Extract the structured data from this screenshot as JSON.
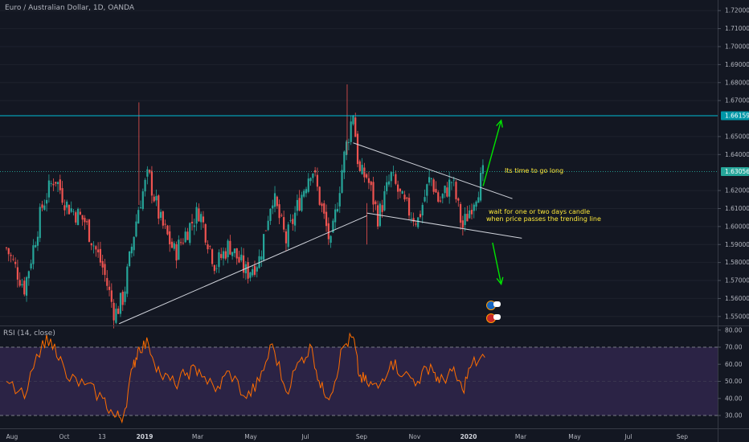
{
  "legend": {
    "symbol_title": "Euro / Australian Dollar, 1D, OANDA"
  },
  "annotations": {
    "go_long": "Its time to go long",
    "wait_line1": "wait for one or two days candle",
    "wait_line2": "when price passes the trending line"
  },
  "rsi": {
    "legend": "RSI (14, close)"
  },
  "price_scale": {
    "ticks": [
      "1.72000",
      "1.71000",
      "1.70000",
      "1.69000",
      "1.68000",
      "1.67000",
      "1.65000",
      "1.64000",
      "1.62000",
      "1.61000",
      "1.60000",
      "1.59000",
      "1.58000",
      "1.57000",
      "1.56000",
      "1.55000"
    ],
    "resistance_label": "1.66159",
    "current_label": "1.63056"
  },
  "rsi_scale": {
    "ticks": [
      "80.00",
      "70.00",
      "60.00",
      "50.00",
      "40.00",
      "30.00"
    ]
  },
  "time_axis": {
    "labels": [
      "Aug",
      "Oct",
      "13",
      "2019",
      "Mar",
      "May",
      "Jul",
      "Sep",
      "Nov",
      "2020",
      "Mar",
      "May",
      "Jul",
      "Sep"
    ]
  },
  "colors": {
    "background": "#131722",
    "up_candle": "#26a69a",
    "down_candle": "#ef5350",
    "resistance_line": "#00bcd4",
    "current_line": "#26a69a",
    "current_label_bg": "#26a69a",
    "arrow": "#00e400",
    "annotation_text": "#ffeb3b",
    "rsi_line": "#ff6d00",
    "rsi_band": "#2b2345",
    "trend_lines": "#d1d4dc"
  },
  "chart_data": {
    "type": "candlestick",
    "title": "Euro / Australian Dollar, 1D, OANDA",
    "symbol": "EURAUD",
    "timeframe": "1D",
    "ylim": [
      1.545,
      1.725
    ],
    "resistance_level": 1.66159,
    "last_price": 1.63056,
    "price_path": {
      "dates": [
        "2018-07-20",
        "2018-08-10",
        "2018-08-31",
        "2018-09-14",
        "2018-09-28",
        "2018-10-19",
        "2018-11-09",
        "2018-11-23",
        "2018-12-03",
        "2018-12-14",
        "2018-12-21",
        "2019-01-01",
        "2019-01-15",
        "2019-02-01",
        "2019-02-15",
        "2019-03-01",
        "2019-03-20",
        "2019-04-05",
        "2019-04-25",
        "2019-05-10",
        "2019-05-25",
        "2019-06-10",
        "2019-06-26",
        "2019-07-10",
        "2019-07-20",
        "2019-08-01",
        "2019-08-15",
        "2019-08-27",
        "2019-09-03",
        "2019-09-12",
        "2019-09-25",
        "2019-10-10",
        "2019-10-25",
        "2019-11-10",
        "2019-11-25",
        "2019-12-05",
        "2019-12-20",
        "2020-01-01",
        "2020-01-12",
        "2020-01-27"
      ],
      "close": [
        1.588,
        1.566,
        1.612,
        1.628,
        1.612,
        1.603,
        1.577,
        1.551,
        1.561,
        1.593,
        1.612,
        1.629,
        1.603,
        1.585,
        1.598,
        1.609,
        1.578,
        1.59,
        1.574,
        1.582,
        1.618,
        1.592,
        1.615,
        1.634,
        1.613,
        1.589,
        1.635,
        1.664,
        1.629,
        1.628,
        1.605,
        1.628,
        1.612,
        1.603,
        1.628,
        1.613,
        1.626,
        1.599,
        1.613,
        1.631
      ]
    },
    "trend_lines": [
      {
        "name": "rising support",
        "from": [
          "2018-11-28",
          1.546
        ],
        "to": [
          "2019-09-12",
          1.606
        ]
      },
      {
        "name": "descending resistance",
        "from": [
          "2019-08-27",
          1.6465
        ],
        "to": [
          "2020-02-28",
          1.6155
        ]
      },
      {
        "name": "lower channel",
        "from": [
          "2019-09-12",
          1.6075
        ],
        "to": [
          "2020-03-10",
          1.5935
        ]
      }
    ],
    "projections": [
      {
        "direction": "up",
        "from": [
          "2020-01-25",
          1.6225
        ],
        "to": [
          "2020-02-15",
          1.659
        ]
      },
      {
        "direction": "down",
        "from": [
          "2020-02-05",
          1.591
        ],
        "to": [
          "2020-02-15",
          1.568
        ]
      }
    ],
    "rsi": {
      "name": "RSI (14, close)",
      "ylim": [
        20,
        80
      ],
      "overbought": 70,
      "oversold": 30,
      "dates": [
        "2018-07-20",
        "2018-08-10",
        "2018-08-31",
        "2018-09-14",
        "2018-09-28",
        "2018-10-19",
        "2018-11-09",
        "2018-11-23",
        "2018-12-03",
        "2018-12-14",
        "2018-12-21",
        "2019-01-01",
        "2019-01-15",
        "2019-02-01",
        "2019-02-15",
        "2019-03-01",
        "2019-03-20",
        "2019-04-05",
        "2019-04-25",
        "2019-05-10",
        "2019-05-25",
        "2019-06-10",
        "2019-06-26",
        "2019-07-10",
        "2019-07-20",
        "2019-08-01",
        "2019-08-15",
        "2019-08-27",
        "2019-09-03",
        "2019-09-12",
        "2019-09-25",
        "2019-10-10",
        "2019-10-25",
        "2019-11-10",
        "2019-11-25",
        "2019-12-05",
        "2019-12-20",
        "2020-01-01",
        "2020-01-12",
        "2020-01-27"
      ],
      "values": [
        50,
        40,
        74,
        72,
        52,
        48,
        40,
        29,
        30,
        58,
        70,
        72,
        54,
        48,
        55,
        57,
        44,
        56,
        40,
        50,
        72,
        44,
        62,
        70,
        46,
        42,
        70,
        76,
        53,
        49,
        46,
        62,
        54,
        50,
        60,
        49,
        56,
        45,
        60,
        64
      ]
    }
  }
}
